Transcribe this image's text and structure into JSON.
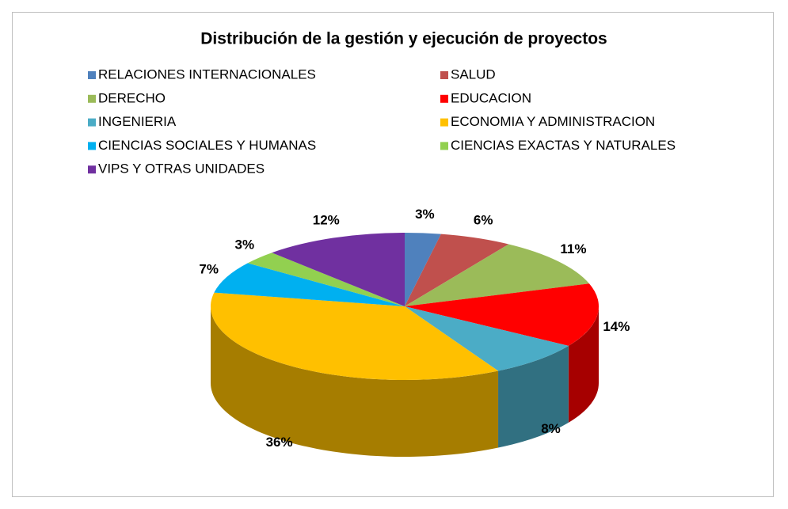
{
  "chart_data": {
    "type": "pie",
    "title": "Distribución de la gestión y ejecución de proyectos",
    "categories": [
      "RELACIONES INTERNACIONALES",
      "SALUD",
      "DERECHO",
      "EDUCACION",
      "INGENIERIA",
      "ECONOMIA Y ADMINISTRACION",
      "CIENCIAS SOCIALES Y HUMANAS",
      "CIENCIAS EXACTAS Y NATURALES",
      "VIPS Y OTRAS UNIDADES"
    ],
    "values": [
      3,
      6,
      11,
      14,
      8,
      36,
      7,
      3,
      12
    ],
    "value_labels": [
      "3%",
      "6%",
      "11%",
      "14%",
      "8%",
      "36%",
      "7%",
      "3%",
      "12%"
    ],
    "colors": [
      "#4f81bd",
      "#c0504d",
      "#9bbb59",
      "#ff0000",
      "#4bacc6",
      "#ffc000",
      "#00b0f0",
      "#92d050",
      "#7030a0"
    ]
  }
}
